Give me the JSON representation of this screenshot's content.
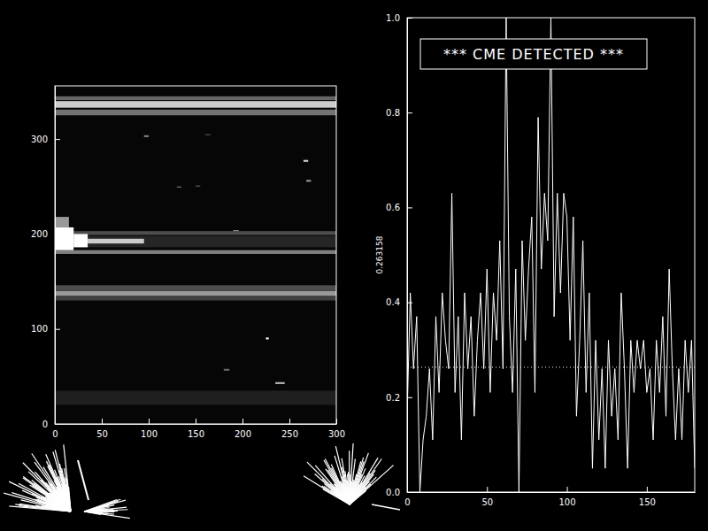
{
  "chart_data": [
    {
      "type": "heatmap",
      "xlim": [
        0,
        300
      ],
      "xticks": [
        0,
        50,
        100,
        150,
        200,
        250,
        300
      ],
      "ylim": [
        0,
        356
      ],
      "yticks": [
        0,
        100,
        200,
        300
      ],
      "zlim": [
        0,
        1
      ],
      "cells": [
        [
          0,
          300,
          20,
          35,
          0.12
        ],
        [
          0,
          300,
          325,
          331,
          0.45
        ],
        [
          0,
          300,
          333,
          340,
          0.8
        ],
        [
          0,
          300,
          341,
          345,
          0.4
        ],
        [
          0,
          300,
          130,
          135,
          0.25
        ],
        [
          0,
          300,
          135,
          140,
          0.6
        ],
        [
          0,
          300,
          140,
          146,
          0.3
        ],
        [
          0,
          300,
          179,
          183,
          0.5
        ],
        [
          0,
          300,
          186,
          198,
          0.15
        ],
        [
          0,
          300,
          199,
          203,
          0.3
        ],
        [
          0,
          15,
          207,
          218,
          0.6
        ],
        [
          0,
          20,
          183,
          207,
          1.0
        ],
        [
          20,
          35,
          186,
          200,
          1.0
        ],
        [
          35,
          95,
          190,
          195,
          0.8
        ],
        [
          235,
          245,
          42,
          44,
          0.7
        ],
        [
          225,
          228,
          89,
          91,
          1.0
        ],
        [
          265,
          270,
          276,
          278,
          0.8
        ],
        [
          190,
          196,
          203,
          204,
          0.6
        ],
        [
          130,
          135,
          249,
          250,
          0.5
        ],
        [
          150,
          155,
          250,
          251,
          0.4
        ],
        [
          95,
          100,
          302,
          304,
          0.5
        ],
        [
          268,
          273,
          255,
          257,
          0.6
        ],
        [
          180,
          186,
          56,
          58,
          0.4
        ],
        [
          160,
          166,
          304,
          305,
          0.35
        ]
      ]
    },
    {
      "type": "line",
      "annotation": "*** CME DETECTED ***",
      "ylabel": "0.263158",
      "threshold": 0.263158,
      "xlim": [
        0,
        180
      ],
      "xticks": [
        0,
        50,
        100,
        150
      ],
      "ylim": [
        0,
        1
      ],
      "yticks": [
        {
          "value": 0,
          "label": "0.0"
        },
        0.2,
        0.4,
        0.6,
        0.8,
        {
          "value": 1,
          "label": "1.0"
        }
      ],
      "color": "#ffffff",
      "x": [
        0,
        2,
        4,
        6,
        8,
        10,
        12,
        14,
        16,
        18,
        20,
        22,
        24,
        26,
        28,
        30,
        32,
        34,
        36,
        38,
        40,
        42,
        44,
        46,
        48,
        50,
        52,
        54,
        56,
        58,
        60,
        62,
        64,
        66,
        68,
        70,
        72,
        74,
        76,
        78,
        80,
        82,
        84,
        86,
        88,
        90,
        92,
        94,
        96,
        98,
        100,
        102,
        104,
        106,
        108,
        110,
        112,
        114,
        116,
        118,
        120,
        122,
        124,
        126,
        128,
        130,
        132,
        134,
        136,
        138,
        140,
        142,
        144,
        146,
        148,
        150,
        152,
        154,
        156,
        158,
        160,
        162,
        164,
        166,
        168,
        170,
        172,
        174,
        176,
        178,
        180
      ],
      "values": [
        0.16,
        0.42,
        0.26,
        0.37,
        0.0,
        0.11,
        0.16,
        0.26,
        0.11,
        0.37,
        0.21,
        0.42,
        0.32,
        0.26,
        0.63,
        0.21,
        0.37,
        0.11,
        0.42,
        0.26,
        0.37,
        0.16,
        0.32,
        0.42,
        0.26,
        0.47,
        0.21,
        0.42,
        0.32,
        0.53,
        0.26,
        1.0,
        0.37,
        0.21,
        0.47,
        0.0,
        0.53,
        0.32,
        0.47,
        0.58,
        0.21,
        0.79,
        0.47,
        0.63,
        0.53,
        1.0,
        0.37,
        0.63,
        0.42,
        0.63,
        0.58,
        0.32,
        0.58,
        0.16,
        0.32,
        0.53,
        0.21,
        0.42,
        0.05,
        0.32,
        0.11,
        0.26,
        0.05,
        0.32,
        0.16,
        0.26,
        0.11,
        0.42,
        0.26,
        0.05,
        0.32,
        0.21,
        0.32,
        0.26,
        0.32,
        0.21,
        0.26,
        0.11,
        0.32,
        0.21,
        0.37,
        0.16,
        0.47,
        0.26,
        0.11,
        0.26,
        0.11,
        0.32,
        0.21,
        0.32,
        0.05
      ]
    }
  ]
}
